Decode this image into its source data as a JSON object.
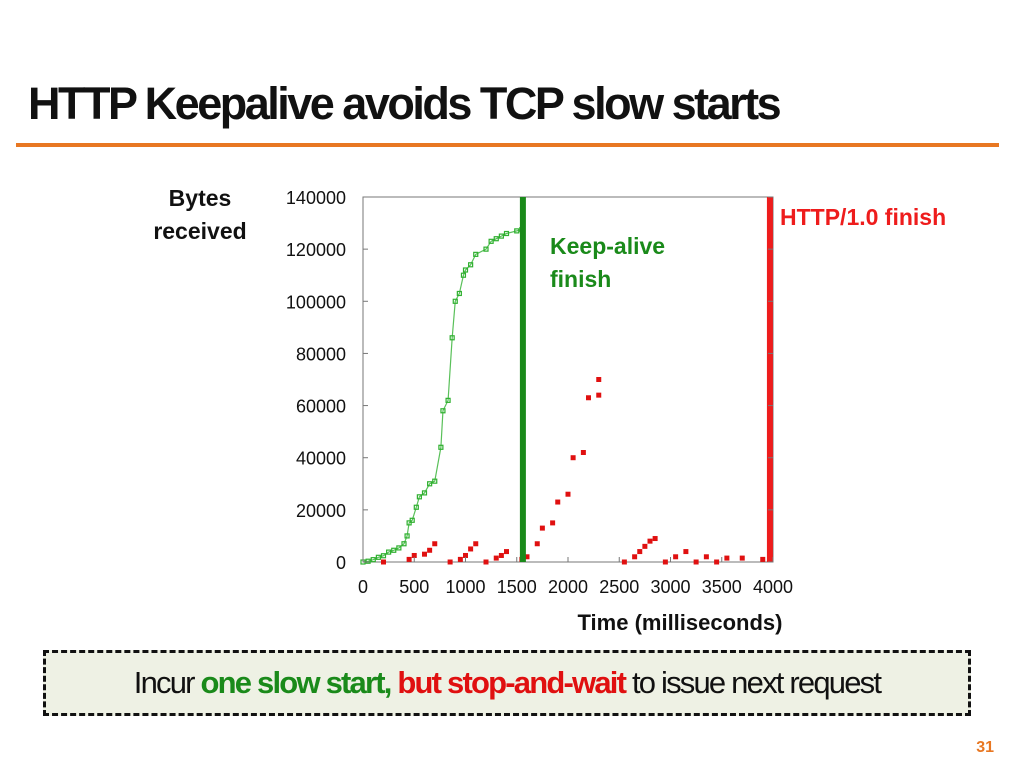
{
  "slide": {
    "title": "HTTP Keepalive avoids TCP slow starts",
    "page_number": "31",
    "accent_color": "#e87722"
  },
  "callout": {
    "part1": "Incur",
    "part2": "one slow start,",
    "part3": "but stop-and-wait",
    "part4": "to issue next request",
    "green": "#1a8a1a",
    "red": "#e01010"
  },
  "chart_data": {
    "type": "scatter",
    "title": "",
    "xlabel": "Time (milliseconds)",
    "ylabel": "Bytes received",
    "xlim": [
      0,
      4000
    ],
    "ylim": [
      0,
      140000
    ],
    "xticks": [
      0,
      500,
      1000,
      1500,
      2000,
      2500,
      3000,
      3500,
      4000
    ],
    "yticks": [
      0,
      20000,
      40000,
      60000,
      80000,
      100000,
      120000,
      140000
    ],
    "grid": false,
    "series": [
      {
        "color": "#2fb02f",
        "points": [
          [
            0,
            0
          ],
          [
            50,
            300
          ],
          [
            100,
            900
          ],
          [
            150,
            1800
          ],
          [
            200,
            2400
          ],
          [
            250,
            3800
          ],
          [
            300,
            4500
          ],
          [
            350,
            5400
          ],
          [
            400,
            7000
          ],
          [
            430,
            10000
          ],
          [
            450,
            15000
          ],
          [
            480,
            16000
          ],
          [
            520,
            21000
          ],
          [
            550,
            25000
          ],
          [
            600,
            26500
          ],
          [
            650,
            30000
          ],
          [
            700,
            31000
          ],
          [
            760,
            44000
          ],
          [
            780,
            58000
          ],
          [
            830,
            62000
          ],
          [
            870,
            86000
          ],
          [
            900,
            100000
          ],
          [
            940,
            103000
          ],
          [
            980,
            110000
          ],
          [
            1000,
            112000
          ],
          [
            1050,
            114000
          ],
          [
            1100,
            118000
          ],
          [
            1200,
            120000
          ],
          [
            1250,
            123000
          ],
          [
            1300,
            124000
          ],
          [
            1350,
            125000
          ],
          [
            1400,
            126000
          ],
          [
            1500,
            127000
          ],
          [
            1550,
            127500
          ]
        ]
      },
      {
        "color": "#e01010",
        "points": [
          [
            200,
            0
          ],
          [
            450,
            1000
          ],
          [
            500,
            2500
          ],
          [
            600,
            3000
          ],
          [
            650,
            4500
          ],
          [
            700,
            7000
          ],
          [
            850,
            0
          ],
          [
            950,
            1000
          ],
          [
            1000,
            2500
          ],
          [
            1050,
            5000
          ],
          [
            1100,
            7000
          ],
          [
            1200,
            0
          ],
          [
            1300,
            1500
          ],
          [
            1350,
            2500
          ],
          [
            1400,
            4000
          ],
          [
            1550,
            1000
          ],
          [
            1600,
            2000
          ],
          [
            1700,
            7000
          ],
          [
            1750,
            13000
          ],
          [
            1850,
            15000
          ],
          [
            1900,
            23000
          ],
          [
            2000,
            26000
          ],
          [
            2050,
            40000
          ],
          [
            2150,
            42000
          ],
          [
            2200,
            63000
          ],
          [
            2300,
            64000
          ],
          [
            2300,
            70000
          ],
          [
            2550,
            0
          ],
          [
            2650,
            2000
          ],
          [
            2700,
            4000
          ],
          [
            2750,
            6000
          ],
          [
            2800,
            8000
          ],
          [
            2850,
            9000
          ],
          [
            2950,
            0
          ],
          [
            3050,
            2000
          ],
          [
            3150,
            4000
          ],
          [
            3250,
            0
          ],
          [
            3350,
            2000
          ],
          [
            3450,
            0
          ],
          [
            3550,
            1500
          ],
          [
            3700,
            1500
          ],
          [
            3900,
            1000
          ]
        ]
      }
    ],
    "vlines": [
      {
        "x": 1560,
        "color": "#1a8a1a",
        "label": "Keep-alive\nfinish"
      },
      {
        "x": 3970,
        "color": "#ee1c1c",
        "label": "HTTP/1.0 finish"
      }
    ]
  }
}
